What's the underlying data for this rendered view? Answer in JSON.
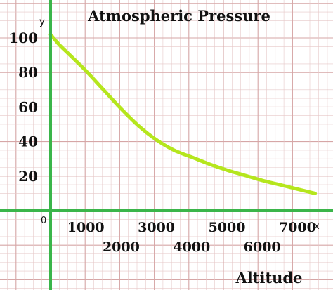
{
  "chart_data": {
    "type": "line",
    "title": "Atmospheric Pressure",
    "xlabel": "Altitude",
    "ylabel": "",
    "x_axis_letter": "x",
    "y_axis_letter": "y",
    "origin_label": "0",
    "xlim": [
      0,
      7500
    ],
    "ylim": [
      0,
      105
    ],
    "grid": true,
    "x_ticks": [
      {
        "value": 1000,
        "label": "1000"
      },
      {
        "value": 2000,
        "label": "2000"
      },
      {
        "value": 3000,
        "label": "3000"
      },
      {
        "value": 4000,
        "label": "4000"
      },
      {
        "value": 5000,
        "label": "5000"
      },
      {
        "value": 6000,
        "label": "6000"
      },
      {
        "value": 7000,
        "label": "7000"
      }
    ],
    "y_ticks": [
      {
        "value": 20,
        "label": "20"
      },
      {
        "value": 40,
        "label": "40"
      },
      {
        "value": 60,
        "label": "60"
      },
      {
        "value": 80,
        "label": "80"
      },
      {
        "value": 100,
        "label": "100"
      }
    ],
    "series": [
      {
        "color": "#b5e61d",
        "x": [
          0,
          250,
          500,
          1000,
          1500,
          2000,
          2500,
          3000,
          3500,
          4000,
          4500,
          5000,
          5500,
          6000,
          6500,
          7000,
          7500
        ],
        "y": [
          102,
          96,
          91,
          81,
          70,
          59,
          49,
          41,
          35,
          31,
          27,
          23.5,
          20.5,
          17.5,
          15,
          12.5,
          10
        ]
      }
    ],
    "colors": {
      "grid_minor": "#e6c8c8",
      "grid_major": "#d6a6a6",
      "axis": "#3bb54a"
    }
  }
}
